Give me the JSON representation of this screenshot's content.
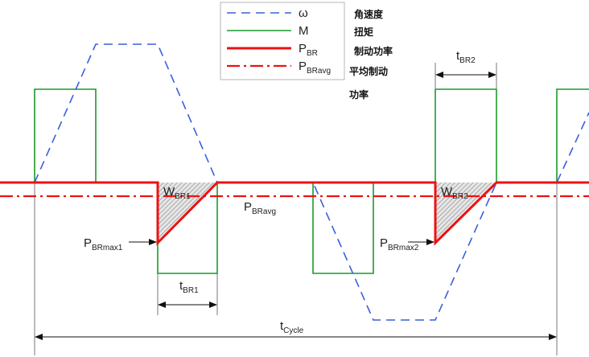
{
  "legend": {
    "items": [
      {
        "symbol": "ω",
        "text": "角速度",
        "color": "#3a5fdc",
        "style": "dashed"
      },
      {
        "symbol": "M",
        "text": "扭矩",
        "color": "#1a9a2a",
        "style": "solid"
      },
      {
        "symbol": "P",
        "symbol_sub": "BR",
        "text": "制动功率",
        "color": "#ee1111",
        "style": "solid-thick"
      },
      {
        "symbol": "P",
        "symbol_sub": "BRavg",
        "text_line1": "平均制动",
        "text_line2": "功率",
        "color": "#ee1111",
        "style": "dash-dot"
      }
    ]
  },
  "labels": {
    "w_br1": {
      "main": "W",
      "sub": "BR1"
    },
    "w_br2": {
      "main": "W",
      "sub": "BR2"
    },
    "p_bravg": {
      "main": "P",
      "sub": "BRavg"
    },
    "p_brmax1": {
      "main": "P",
      "sub": "BRmax1"
    },
    "p_brmax2": {
      "main": "P",
      "sub": "BRmax2"
    },
    "t_br1": {
      "main": "t",
      "sub": "BR1"
    },
    "t_br2": {
      "main": "t",
      "sub": "BR2"
    },
    "t_cycle": {
      "main": "t",
      "sub": "Cycle"
    }
  },
  "colors": {
    "omega": "#3a5fdc",
    "torque": "#1a9a2a",
    "power": "#ee1111",
    "hatch": "#999999"
  }
}
